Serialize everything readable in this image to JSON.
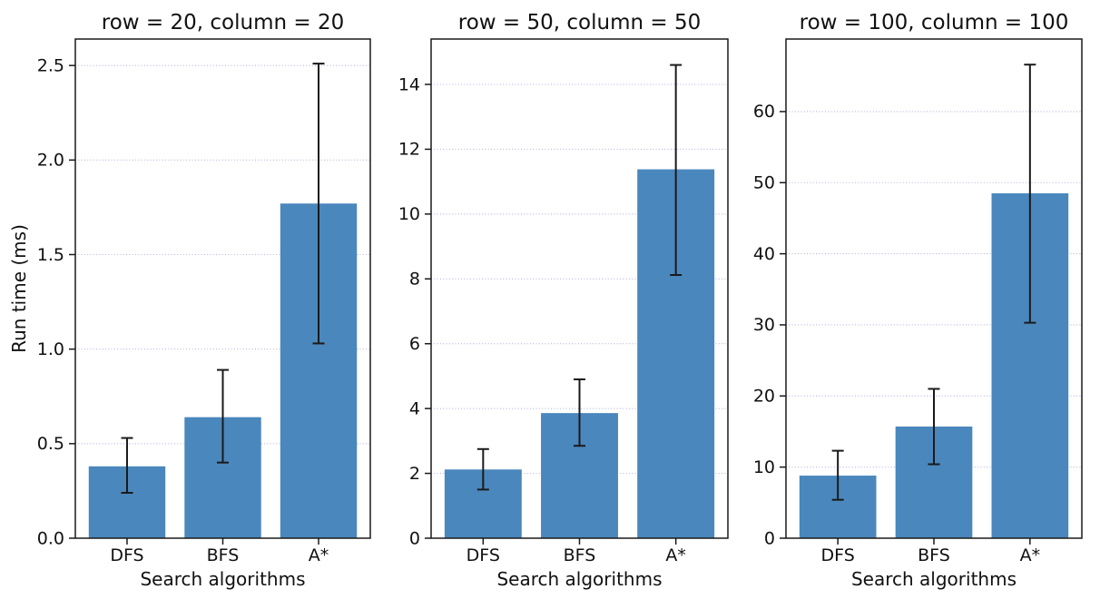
{
  "figure": {
    "colors": {
      "bar": "#4a87bd",
      "grid": "#b4b4e4",
      "error": "#1a1a1a",
      "axis": "#1a1a1a",
      "text": "#111111"
    }
  },
  "chart_data": [
    {
      "type": "bar",
      "title": "row = 20, column = 20",
      "xlabel": "Search algorithms",
      "ylabel": "Run time (ms)",
      "categories": [
        "DFS",
        "BFS",
        "A*"
      ],
      "values": [
        0.38,
        0.64,
        1.77
      ],
      "error_low": [
        0.24,
        0.4,
        1.03
      ],
      "error_high": [
        0.53,
        0.89,
        2.51
      ],
      "yticks": [
        0,
        0.5,
        1.0,
        1.5,
        2.0,
        2.5
      ],
      "ytick_labels": [
        "0.0",
        "0.5",
        "1.0",
        "1.5",
        "2.0",
        "2.5"
      ],
      "ylim": [
        0,
        2.64
      ],
      "grid": "dotted horizontal",
      "legend": "none"
    },
    {
      "type": "bar",
      "title": "row = 50, column = 50",
      "xlabel": "Search algorithms",
      "ylabel": "",
      "categories": [
        "DFS",
        "BFS",
        "A*"
      ],
      "values": [
        2.12,
        3.86,
        11.38
      ],
      "error_low": [
        1.5,
        2.85,
        8.12
      ],
      "error_high": [
        2.75,
        4.9,
        14.6
      ],
      "yticks": [
        0,
        2,
        4,
        6,
        8,
        10,
        12,
        14
      ],
      "ytick_labels": [
        "0",
        "2",
        "4",
        "6",
        "8",
        "10",
        "12",
        "14"
      ],
      "ylim": [
        0,
        15.4
      ],
      "grid": "dotted horizontal",
      "legend": "none"
    },
    {
      "type": "bar",
      "title": "row = 100, column = 100",
      "xlabel": "Search algorithms",
      "ylabel": "",
      "categories": [
        "DFS",
        "BFS",
        "A*"
      ],
      "values": [
        8.8,
        15.7,
        48.5
      ],
      "error_low": [
        5.4,
        10.4,
        30.3
      ],
      "error_high": [
        12.3,
        21.0,
        66.6
      ],
      "yticks": [
        0,
        10,
        20,
        30,
        40,
        50,
        60
      ],
      "ytick_labels": [
        "0",
        "10",
        "20",
        "30",
        "40",
        "50",
        "60"
      ],
      "ylim": [
        0,
        70.2
      ],
      "grid": "dotted horizontal",
      "legend": "none"
    }
  ]
}
